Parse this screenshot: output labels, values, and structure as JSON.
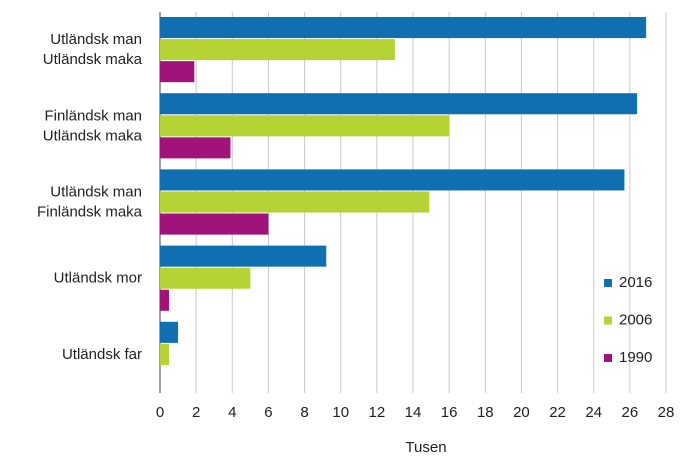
{
  "chart_data": {
    "type": "hbar",
    "categories": [
      [
        "Utländsk man",
        "Utländsk maka"
      ],
      [
        "Finländsk man",
        "Utländsk maka"
      ],
      [
        "Utländsk man",
        "Finländsk maka"
      ],
      [
        "Utländsk mor"
      ],
      [
        "Utländsk far"
      ]
    ],
    "series": [
      {
        "name": "2016",
        "color": "#0f6fb0",
        "values": [
          26.9,
          26.4,
          25.7,
          9.2,
          1.0
        ]
      },
      {
        "name": "2006",
        "color": "#b5d334",
        "values": [
          13.0,
          16.0,
          14.9,
          5.0,
          0.5
        ]
      },
      {
        "name": "1990",
        "color": "#a0137a",
        "values": [
          1.9,
          3.9,
          6.0,
          0.5,
          0
        ]
      }
    ],
    "xlim": [
      0,
      28
    ],
    "xticks": [
      0,
      2,
      4,
      6,
      8,
      10,
      12,
      14,
      16,
      18,
      20,
      22,
      24,
      26,
      28
    ],
    "xlabel": "Tusen",
    "grid": true,
    "legend": "right"
  }
}
